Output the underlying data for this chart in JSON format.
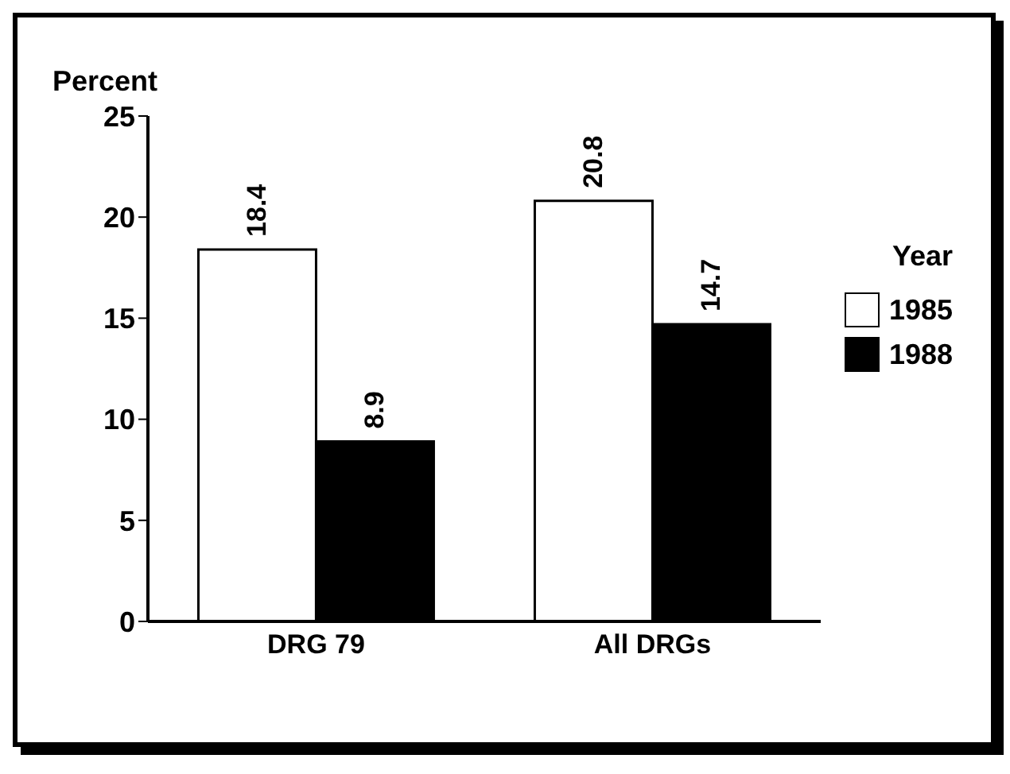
{
  "chart_data": {
    "type": "bar",
    "ylabel": "Percent",
    "legend_title": "Year",
    "categories": [
      "DRG 79",
      "All DRGs"
    ],
    "series": [
      {
        "name": "1985",
        "color": "#ffffff",
        "values": [
          18.4,
          20.8
        ]
      },
      {
        "name": "1988",
        "color": "#000000",
        "values": [
          8.9,
          14.7
        ]
      }
    ],
    "ylim": [
      0,
      25
    ],
    "yticks": [
      0,
      5,
      10,
      15,
      20,
      25
    ],
    "data_labels": true,
    "legend": "right",
    "grid": false
  }
}
